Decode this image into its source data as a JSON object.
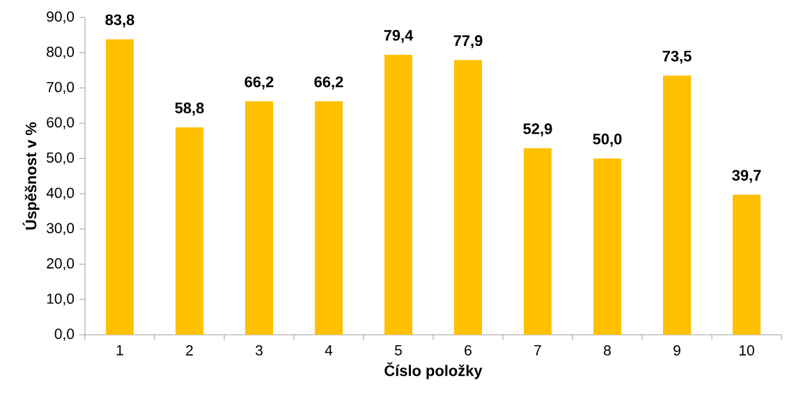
{
  "chart_data": {
    "type": "bar",
    "xlabel": "Číslo položky",
    "ylabel": "Úspěšnost v %",
    "categories": [
      "1",
      "2",
      "3",
      "4",
      "5",
      "6",
      "7",
      "8",
      "9",
      "10"
    ],
    "values": [
      83.8,
      58.8,
      66.2,
      66.2,
      79.4,
      77.9,
      52.9,
      50.0,
      73.5,
      39.7
    ],
    "value_labels": [
      "83,8",
      "58,8",
      "66,2",
      "66,2",
      "79,4",
      "77,9",
      "52,9",
      "50,0",
      "73,5",
      "39,7"
    ],
    "color": "#ffc000",
    "ylim": [
      0,
      90
    ],
    "yticks": [
      {
        "value": 0,
        "label": "0,0"
      },
      {
        "value": 10,
        "label": "10,0"
      },
      {
        "value": 20,
        "label": "20,0"
      },
      {
        "value": 30,
        "label": "30,0"
      },
      {
        "value": 40,
        "label": "40,0"
      },
      {
        "value": 50,
        "label": "50,0"
      },
      {
        "value": 60,
        "label": "60,0"
      },
      {
        "value": 70,
        "label": "70,0"
      },
      {
        "value": 80,
        "label": "80,0"
      },
      {
        "value": 90,
        "label": "90,0"
      }
    ],
    "grid": false
  }
}
